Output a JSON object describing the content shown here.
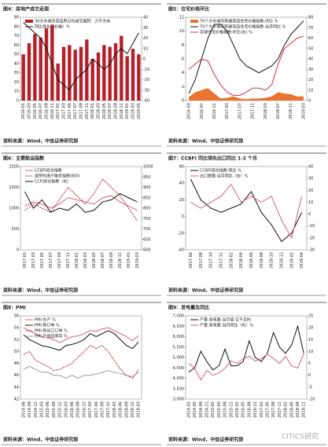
{
  "chart_data": [
    {
      "type": "bar",
      "title": "图4：房地产成交走弱",
      "source": "资料来源：Wind，中信证券研究部",
      "categories": [
        "2016-01",
        "2016-03",
        "2016-05",
        "2016-07",
        "2016-09",
        "2016-11",
        "2017-01",
        "2017-03",
        "2017-05",
        "2017-07",
        "2017-09",
        "2017-11",
        "2018-01",
        "2018-03",
        "2018-05",
        "2018-07",
        "2018-09",
        "2018-11",
        "2019-01",
        "2019-03",
        "2019-05"
      ],
      "series": [
        {
          "name": "30大中城市商品房日均成交面积：万平方米",
          "type": "bar",
          "color": "#b5202b",
          "values": [
            50,
            62,
            72,
            68,
            78,
            82,
            40,
            58,
            60,
            55,
            58,
            66,
            45,
            52,
            60,
            58,
            62,
            70,
            48,
            56,
            50
          ]
        },
        {
          "name": "同比增长（右轴）%",
          "type": "line",
          "axis": "y2",
          "color": "#111111",
          "values": [
            35,
            30,
            25,
            20,
            10,
            -5,
            -20,
            -25,
            -30,
            -20,
            -15,
            -10,
            0,
            -5,
            -10,
            -5,
            5,
            10,
            5,
            15,
            25
          ]
        }
      ],
      "ylim": [
        0,
        90
      ],
      "yticks": [
        0,
        10,
        20,
        30,
        40,
        50,
        60,
        70,
        80,
        90
      ],
      "y2lim": [
        -40,
        40
      ],
      "y2ticks": [
        -40,
        -30,
        -20,
        -10,
        0,
        10,
        20,
        30,
        40
      ]
    },
    {
      "type": "line",
      "title": "图5：住宅价格环比",
      "source": "资料来源：Wind，中信证券研究部",
      "categories": [
        "2016-03",
        null,
        "2016-07",
        null,
        "2016-11",
        null,
        "2017-03",
        null,
        "2017-07",
        null,
        "2017-11",
        null,
        "2018-03",
        null,
        "2018-07",
        null,
        "2018-11",
        null,
        "2019-03"
      ],
      "series": [
        {
          "name": "70个大中城市新建商品住宅价格指数:环比 %",
          "type": "area",
          "color": "#e9742f",
          "values": [
            0.5,
            1.2,
            1.5,
            1.8,
            1.0,
            0.3,
            0.4,
            0.6,
            0.3,
            0.2,
            0.3,
            0.3,
            0.4,
            0.6,
            1.2,
            1.0,
            0.9,
            0.6,
            0.6
          ]
        },
        {
          "name": "70个大中城市新建商品住宅价格指数:当月同比 %",
          "type": "line",
          "color": "#111111",
          "values": [
            1,
            3,
            6,
            9,
            11,
            11,
            10,
            8,
            6,
            5,
            4.5,
            4,
            4.5,
            5,
            6,
            8,
            9.5,
            10.5,
            11.5
          ]
        },
        {
          "name": "百城住宅价格指数:环比(右) %",
          "type": "line",
          "axis": "y2",
          "color": "#c8323c",
          "values": [
            30,
            35,
            40,
            38,
            25,
            15,
            8,
            5,
            5,
            8,
            12,
            12,
            10,
            15,
            35,
            50,
            55,
            60,
            62
          ]
        }
      ],
      "ylim": [
        0,
        12
      ],
      "yticks": [
        0,
        2,
        4,
        6,
        8,
        10,
        12
      ],
      "y2lim": [
        0,
        80
      ],
      "y2ticks": [
        0,
        10,
        20,
        30,
        40,
        50,
        60,
        70,
        80
      ]
    },
    {
      "type": "line",
      "title": "图6：主要航运指数",
      "source": "资料来源：Wind，中信证券研究部",
      "categories": [
        "2017-01",
        "2017-03",
        "2017-05",
        "2017-07",
        "2017-09",
        "2017-11",
        "2018-01",
        "2018-03",
        "2018-05",
        "2018-07",
        "2018-09",
        "2018-11",
        "2019-01",
        "2019-03"
      ],
      "series": [
        {
          "name": "CCBFI综合指数",
          "type": "line",
          "color": "#d9607a",
          "values": [
            1050,
            1150,
            1100,
            1000,
            1100,
            1250,
            1200,
            1150,
            1100,
            1250,
            1300,
            1150,
            1050,
            950
          ]
        },
        {
          "name": "波罗的海干散货指数(BDI)",
          "type": "line",
          "dash": true,
          "color": "#b5202b",
          "values": [
            950,
            1100,
            1000,
            900,
            1200,
            1500,
            1300,
            1100,
            1350,
            1700,
            1500,
            1300,
            1000,
            700
          ]
        },
        {
          "name": "CCFI综合指数（右）",
          "type": "line",
          "axis": "y2",
          "color": "#111111",
          "values": [
            880,
            800,
            840,
            780,
            800,
            790,
            820,
            780,
            790,
            830,
            840,
            870,
            850,
            830
          ]
        }
      ],
      "ylim": [
        0,
        2000
      ],
      "yticks": [
        0,
        500,
        1000,
        1500,
        2000
      ],
      "y2lim": [
        600,
        1000
      ],
      "y2ticks": [
        600,
        650,
        700,
        750,
        800,
        850,
        900,
        950,
        1000
      ]
    },
    {
      "type": "line",
      "title": "图7：CCBFI 同比领先出口同比 1-2 个月",
      "source": "资料来源：Wind，中信证券研究部",
      "categories": [
        "2017-06",
        "2017-08",
        "2017-10",
        "2017-12",
        "2018-02",
        "2018-04",
        "2018-06",
        "2018-08",
        "2018-10",
        "2018-12",
        "2019-02",
        "2019-04"
      ],
      "series": [
        {
          "name": "CCBFI综合指数:同比 %",
          "type": "line",
          "color": "#111111",
          "values": [
            45,
            20,
            10,
            5,
            10,
            15,
            30,
            5,
            -10,
            -30,
            -20,
            5
          ]
        },
        {
          "name": "出口金额:当月同比（右）%",
          "type": "line",
          "axis": "y2",
          "color": "#d9607a",
          "values": [
            10,
            5,
            10,
            15,
            25,
            10,
            15,
            10,
            15,
            -5,
            -20,
            15
          ]
        }
      ],
      "ylim": [
        -40,
        60
      ],
      "yticks": [
        -40,
        -20,
        0,
        20,
        40,
        60
      ],
      "y2lim": [
        -30,
        40
      ],
      "y2ticks": [
        -30,
        -20,
        -10,
        0,
        10,
        20,
        30,
        40
      ]
    },
    {
      "type": "line",
      "title": "图8：PMI",
      "source": "资料来源：Wind，中信证券研究部",
      "categories": [
        "2014-06",
        "2014-09",
        "2014-12",
        "2015-03",
        "2015-06",
        "2015-09",
        "2015-12",
        "2016-03",
        "2016-06",
        "2016-09",
        "2016-12",
        "2017-03",
        "2017-06",
        "2017-09",
        "2017-12",
        "2018-03",
        "2018-06",
        "2018-09",
        "2018-12",
        "2019-03"
      ],
      "series": [
        {
          "name": "PMI:生产 %",
          "type": "line",
          "color": "#d9607a",
          "values": [
            54,
            53.5,
            53,
            52.5,
            52.3,
            52,
            51.5,
            52,
            52.5,
            52.6,
            53,
            53.5,
            53.4,
            53.8,
            54,
            53.5,
            53,
            52.5,
            51.8,
            52.7
          ]
        },
        {
          "name": "PMI:新订单 %",
          "type": "line",
          "color": "#111111",
          "values": [
            52.8,
            52,
            51.5,
            51,
            50.8,
            50.5,
            50.2,
            51,
            51.2,
            51.5,
            52,
            53,
            52.5,
            53,
            53.5,
            53,
            52,
            51,
            50.5,
            51.6
          ]
        },
        {
          "name": "PMI:新出口订单 %",
          "type": "line",
          "dash": true,
          "color": "#b5202b",
          "values": [
            49.5,
            50,
            48.5,
            48,
            47.5,
            46.8,
            47,
            47.5,
            48,
            49,
            50,
            51,
            50.5,
            51,
            50,
            48.5,
            47,
            46,
            45.5,
            47
          ]
        },
        {
          "name": "PMI:产成品库存 %",
          "type": "line",
          "color": "#999999",
          "values": [
            47,
            47.5,
            47,
            46.5,
            46.5,
            46,
            46,
            45.5,
            46,
            45.5,
            46,
            46,
            46.2,
            46.5,
            46.8,
            46.5,
            46.3,
            46,
            45.8,
            46.5
          ]
        }
      ],
      "ylim": [
        42,
        56
      ],
      "yticks": [
        42,
        44,
        46,
        48,
        50,
        52,
        54,
        56
      ]
    },
    {
      "type": "line",
      "title": "图9：发电量及同比",
      "source": "资料来源：Wind，中信证券研究部",
      "categories": [
        "2014-02",
        "2014-05",
        "2014-08",
        "2014-11",
        "2015-02",
        "2015-05",
        "2015-08",
        "2015-11",
        "2016-02",
        "2016-05",
        "2016-08",
        "2016-11",
        "2017-02",
        "2017-05",
        "2017-08",
        "2017-11",
        "2018-02",
        "2018-05",
        "2018-08",
        "2018-11"
      ],
      "series": [
        {
          "name": "产量:发电量:当月值 亿千瓦时",
          "type": "line",
          "color": "#111111",
          "values": [
            4300,
            4500,
            5300,
            4800,
            4400,
            4600,
            5400,
            4600,
            4600,
            4800,
            5800,
            5000,
            4800,
            5200,
            6200,
            5500,
            5200,
            5600,
            6500,
            5200
          ]
        },
        {
          "name": "产量:发电量:当月同比（右）%",
          "type": "line",
          "axis": "y2",
          "color": "#d9607a",
          "values": [
            5,
            3,
            -2,
            2,
            0,
            1,
            3,
            6,
            5,
            7,
            8,
            6,
            7,
            9,
            7,
            5,
            8,
            4,
            3,
            9
          ]
        }
      ],
      "ylim": [
        3000,
        7000
      ],
      "yticks": [
        {
          "value": 3000,
          "label": "3,000"
        },
        {
          "value": 3500,
          "label": "3,500"
        },
        {
          "value": 4000,
          "label": "4,000"
        },
        {
          "value": 4500,
          "label": "4,500"
        },
        {
          "value": 5000,
          "label": "5,000"
        },
        {
          "value": 5500,
          "label": "5,500"
        },
        {
          "value": 6000,
          "label": "6,000"
        },
        {
          "value": 6500,
          "label": "6,500"
        },
        {
          "value": 7000,
          "label": "7,000"
        }
      ],
      "y2lim": [
        -10,
        25
      ],
      "y2ticks": [
        -10,
        -5,
        0,
        5,
        10,
        15,
        20,
        25
      ]
    }
  ],
  "watermark": "CITICS研究"
}
